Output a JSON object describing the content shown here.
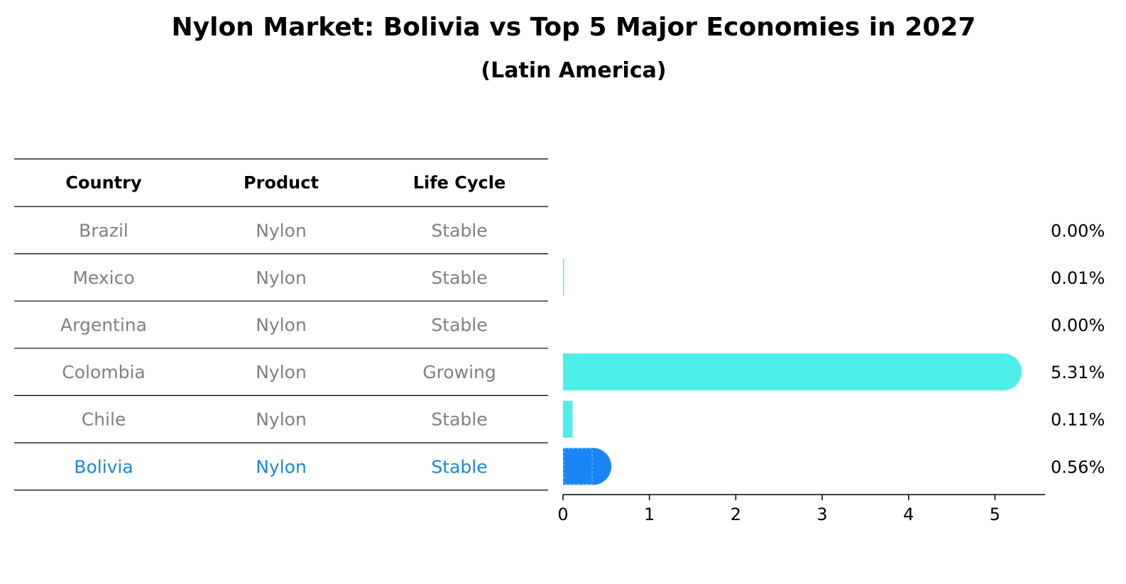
{
  "title": "Nylon Market: Bolivia vs Top 5 Major Economies in 2027",
  "subtitle": "(Latin America)",
  "table": {
    "headers": [
      "Country",
      "Product",
      "Life Cycle"
    ],
    "rows": [
      {
        "country": "Brazil",
        "product": "Nylon",
        "life_cycle": "Stable",
        "highlight": false
      },
      {
        "country": "Mexico",
        "product": "Nylon",
        "life_cycle": "Stable",
        "highlight": false
      },
      {
        "country": "Argentina",
        "product": "Nylon",
        "life_cycle": "Stable",
        "highlight": false
      },
      {
        "country": "Colombia",
        "product": "Nylon",
        "life_cycle": "Growing",
        "highlight": false
      },
      {
        "country": "Chile",
        "product": "Nylon",
        "life_cycle": "Stable",
        "highlight": false
      },
      {
        "country": "Bolivia",
        "product": "Nylon",
        "life_cycle": "Stable",
        "highlight": true
      }
    ]
  },
  "colors": {
    "text_muted": "#808080",
    "highlight_text": "#1a86e0",
    "bar": "#4deee9",
    "bar_highlight": "#1a86f5",
    "rule": "#000000"
  },
  "chart_data": {
    "type": "bar",
    "orientation": "horizontal",
    "categories": [
      "Brazil",
      "Mexico",
      "Argentina",
      "Colombia",
      "Chile",
      "Bolivia"
    ],
    "values": [
      0.0,
      0.01,
      0.0,
      5.31,
      0.11,
      0.56
    ],
    "value_labels": [
      "0.00%",
      "0.01%",
      "0.00%",
      "5.31%",
      "0.11%",
      "0.56%"
    ],
    "highlight": "Bolivia",
    "xlim": [
      0,
      5.58
    ],
    "xticks": [
      0,
      1,
      2,
      3,
      4,
      5
    ],
    "xtick_labels": [
      "0",
      "1",
      "2",
      "3",
      "4",
      "5"
    ],
    "grid": false,
    "legend": "none"
  }
}
